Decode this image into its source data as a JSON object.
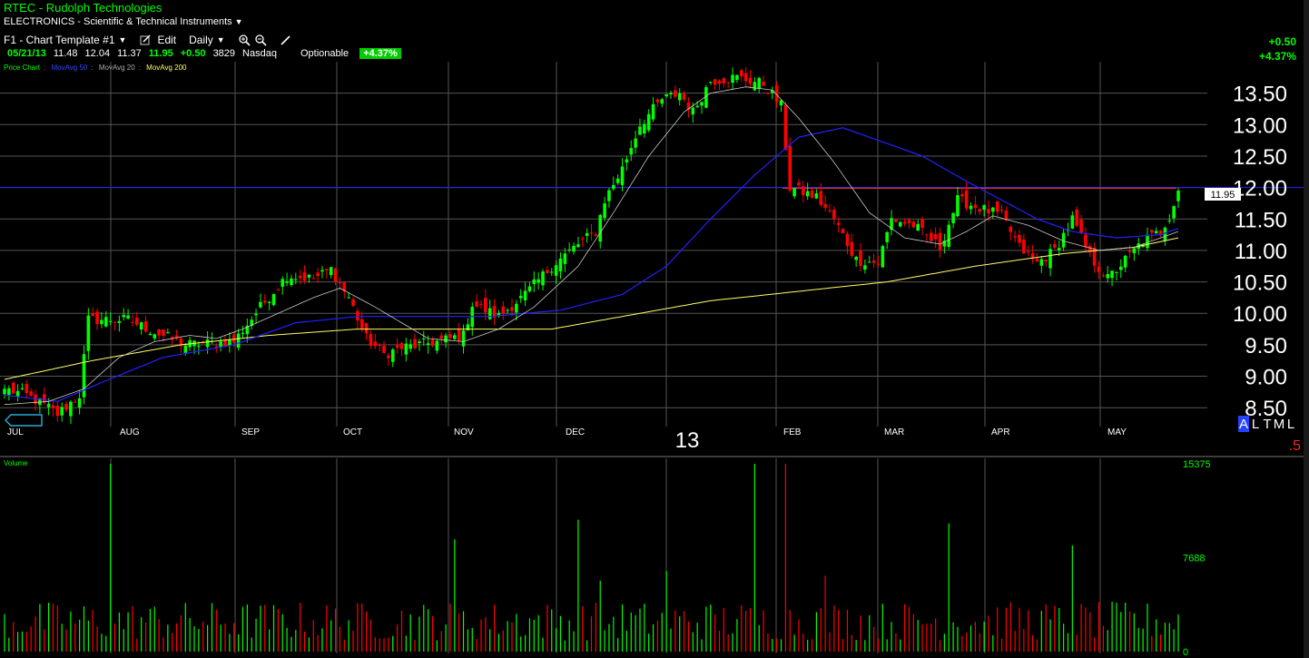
{
  "header": {
    "title": "RTEC - Rudolph Technologies",
    "sector": "ELECTRONICS - Scientific & Technical Instruments",
    "template": "F1 - Chart Template #1",
    "edit_label": "Edit",
    "period": "Daily"
  },
  "quote": {
    "date": "05/21/13",
    "open": "11.48",
    "high": "12.04",
    "low": "11.37",
    "last": "11.95",
    "change": "+0.50",
    "volume": "3829",
    "exchange": "Nasdaq",
    "optionable": "Optionable",
    "pct": "+4.37%"
  },
  "right_change": {
    "change": "+0.50",
    "pct": "+4.37%"
  },
  "legend": {
    "price": "Price Chart",
    "ma50": "MovAvg 50",
    "ma20": "MovAvg 20",
    "ma200": "MovAvg 200",
    "volume": "Volume"
  },
  "colors": {
    "up": "#00ff00",
    "down": "#ff0000",
    "ma20": "#c8c8c8",
    "ma50": "#2222ff",
    "ma200": "#ffff66",
    "grid": "#555555"
  },
  "price_label": "11.95",
  "year_label": "13",
  "altml": [
    "A",
    "L",
    "T",
    "M",
    "L"
  ],
  "corner_value": ".5",
  "chart_data": {
    "type": "candlestick",
    "title": "RTEC - Rudolph Technologies",
    "x_labels": [
      "JUL",
      "AUG",
      "SEP",
      "OCT",
      "NOV",
      "DEC",
      "13",
      "FEB",
      "MAR",
      "APR",
      "MAY"
    ],
    "y_ticks": [
      8.5,
      9.0,
      9.5,
      10.0,
      10.5,
      11.0,
      11.5,
      12.0,
      12.5,
      13.0,
      13.5
    ],
    "y_tick_labels": [
      "8.50",
      "9.00",
      "9.50",
      "10.00",
      "10.50",
      "11.00",
      "11.50",
      "12.00",
      "12.50",
      "13.00",
      "13.50"
    ],
    "ylim": [
      8.2,
      14.0
    ],
    "volume_ticks": [
      0,
      7688,
      15375
    ],
    "volume_tick_labels": [
      "0",
      "7688",
      "15375"
    ],
    "last_price": 11.95,
    "resistance_line": 11.99,
    "grid": true,
    "price_anchors": [
      [
        0,
        8.8
      ],
      [
        5,
        8.7
      ],
      [
        10,
        8.5
      ],
      [
        12,
        8.4
      ],
      [
        17,
        8.7
      ],
      [
        19,
        9.9
      ],
      [
        28,
        9.9
      ],
      [
        34,
        9.7
      ],
      [
        41,
        9.5
      ],
      [
        52,
        9.55
      ],
      [
        58,
        10.1
      ],
      [
        64,
        10.6
      ],
      [
        70,
        10.55
      ],
      [
        74,
        10.7
      ],
      [
        78,
        10.25
      ],
      [
        82,
        9.6
      ],
      [
        86,
        9.35
      ],
      [
        90,
        9.45
      ],
      [
        98,
        9.55
      ],
      [
        104,
        9.65
      ],
      [
        106,
        10.15
      ],
      [
        112,
        9.95
      ],
      [
        118,
        10.3
      ],
      [
        124,
        10.75
      ],
      [
        130,
        11.1
      ],
      [
        134,
        11.3
      ],
      [
        136,
        11.8
      ],
      [
        140,
        12.3
      ],
      [
        144,
        13.0
      ],
      [
        149,
        13.4
      ],
      [
        153,
        13.5
      ],
      [
        156,
        13.2
      ],
      [
        160,
        13.7
      ],
      [
        166,
        13.75
      ],
      [
        172,
        13.65
      ],
      [
        176,
        13.3
      ],
      [
        178,
        12.0
      ],
      [
        184,
        11.85
      ],
      [
        188,
        11.5
      ],
      [
        193,
        10.85
      ],
      [
        198,
        10.8
      ],
      [
        201,
        11.5
      ],
      [
        206,
        11.4
      ],
      [
        212,
        11.05
      ],
      [
        216,
        11.8
      ],
      [
        220,
        11.7
      ],
      [
        226,
        11.55
      ],
      [
        230,
        11.05
      ],
      [
        234,
        10.8
      ],
      [
        238,
        11.0
      ],
      [
        242,
        11.5
      ],
      [
        246,
        10.9
      ],
      [
        250,
        10.55
      ],
      [
        254,
        10.85
      ],
      [
        258,
        11.15
      ],
      [
        262,
        11.3
      ],
      [
        264,
        11.55
      ],
      [
        266,
        11.95
      ]
    ],
    "ma20_anchors": [
      [
        0,
        8.55
      ],
      [
        10,
        8.6
      ],
      [
        18,
        8.8
      ],
      [
        26,
        9.3
      ],
      [
        34,
        9.55
      ],
      [
        42,
        9.65
      ],
      [
        48,
        9.6
      ],
      [
        54,
        9.75
      ],
      [
        62,
        10.0
      ],
      [
        70,
        10.25
      ],
      [
        76,
        10.4
      ],
      [
        84,
        10.1
      ],
      [
        90,
        9.85
      ],
      [
        96,
        9.6
      ],
      [
        104,
        9.55
      ],
      [
        112,
        9.75
      ],
      [
        120,
        10.1
      ],
      [
        130,
        10.75
      ],
      [
        138,
        11.6
      ],
      [
        146,
        12.5
      ],
      [
        154,
        13.2
      ],
      [
        160,
        13.5
      ],
      [
        168,
        13.6
      ],
      [
        174,
        13.55
      ],
      [
        180,
        13.1
      ],
      [
        188,
        12.4
      ],
      [
        196,
        11.6
      ],
      [
        204,
        11.2
      ],
      [
        212,
        11.1
      ],
      [
        218,
        11.3
      ],
      [
        224,
        11.55
      ],
      [
        232,
        11.4
      ],
      [
        240,
        11.15
      ],
      [
        248,
        11.0
      ],
      [
        256,
        11.05
      ],
      [
        262,
        11.2
      ],
      [
        266,
        11.3
      ]
    ],
    "ma50_anchors": [
      [
        0,
        8.7
      ],
      [
        12,
        8.6
      ],
      [
        22,
        8.9
      ],
      [
        36,
        9.3
      ],
      [
        52,
        9.5
      ],
      [
        66,
        9.85
      ],
      [
        80,
        9.95
      ],
      [
        98,
        9.95
      ],
      [
        110,
        9.95
      ],
      [
        126,
        10.05
      ],
      [
        140,
        10.3
      ],
      [
        150,
        10.75
      ],
      [
        160,
        11.5
      ],
      [
        170,
        12.2
      ],
      [
        180,
        12.8
      ],
      [
        190,
        12.95
      ],
      [
        198,
        12.75
      ],
      [
        208,
        12.5
      ],
      [
        218,
        12.1
      ],
      [
        226,
        11.8
      ],
      [
        234,
        11.5
      ],
      [
        242,
        11.3
      ],
      [
        252,
        11.2
      ],
      [
        262,
        11.25
      ],
      [
        266,
        11.35
      ]
    ],
    "ma200_anchors": [
      [
        0,
        8.95
      ],
      [
        20,
        9.25
      ],
      [
        40,
        9.5
      ],
      [
        60,
        9.65
      ],
      [
        80,
        9.75
      ],
      [
        100,
        9.75
      ],
      [
        124,
        9.75
      ],
      [
        140,
        9.95
      ],
      [
        160,
        10.2
      ],
      [
        180,
        10.35
      ],
      [
        200,
        10.5
      ],
      [
        220,
        10.75
      ],
      [
        240,
        10.95
      ],
      [
        256,
        11.05
      ],
      [
        266,
        11.2
      ]
    ],
    "volume_spikes": [
      [
        24,
        15375
      ],
      [
        102,
        9200
      ],
      [
        130,
        10800
      ],
      [
        170,
        15375
      ],
      [
        177,
        15375
      ],
      [
        214,
        10500
      ],
      [
        242,
        8700
      ],
      [
        135,
        5800
      ],
      [
        150,
        6600
      ],
      [
        186,
        6200
      ]
    ]
  }
}
